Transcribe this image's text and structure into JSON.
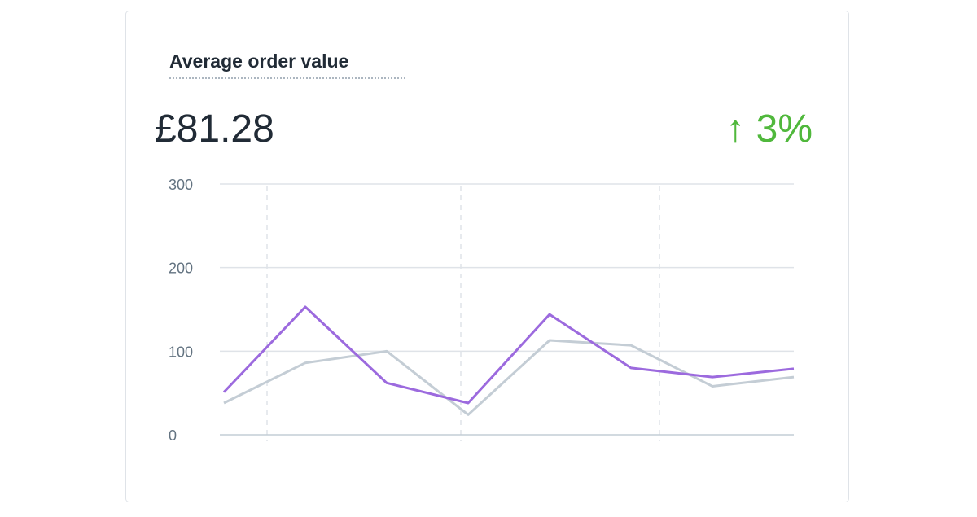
{
  "card": {
    "title": "Average order value",
    "value": "£81.28",
    "change": "↑ 3%"
  },
  "chart_data": {
    "type": "line",
    "categories": [
      null,
      null,
      null,
      null,
      null,
      null,
      null,
      null
    ],
    "series": [
      {
        "color": "#c4cdd5",
        "values": [
          38,
          86,
          100,
          24,
          113,
          107,
          58,
          69
        ]
      },
      {
        "color": "#9c6ade",
        "values": [
          51,
          153,
          62,
          38,
          144,
          80,
          69,
          79
        ]
      }
    ],
    "ylim": [
      0,
      300
    ],
    "yticks": [
      0,
      100,
      200,
      300
    ],
    "grid": true
  }
}
